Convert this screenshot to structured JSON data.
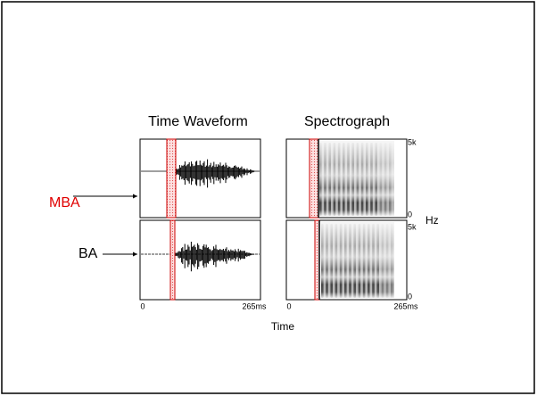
{
  "titles": {
    "waveform": "Time Waveform",
    "spectrograph": "Spectrograph"
  },
  "rows": [
    {
      "label": "MBA"
    },
    {
      "label": "BA"
    }
  ],
  "waveform_axis": {
    "start": "0",
    "end": "265ms"
  },
  "spectrograph_axis": {
    "start": "0",
    "end": "265ms"
  },
  "x_label": "Time",
  "frequency_axis": {
    "top": "5k",
    "bottom": "0",
    "unit": "Hz"
  }
}
